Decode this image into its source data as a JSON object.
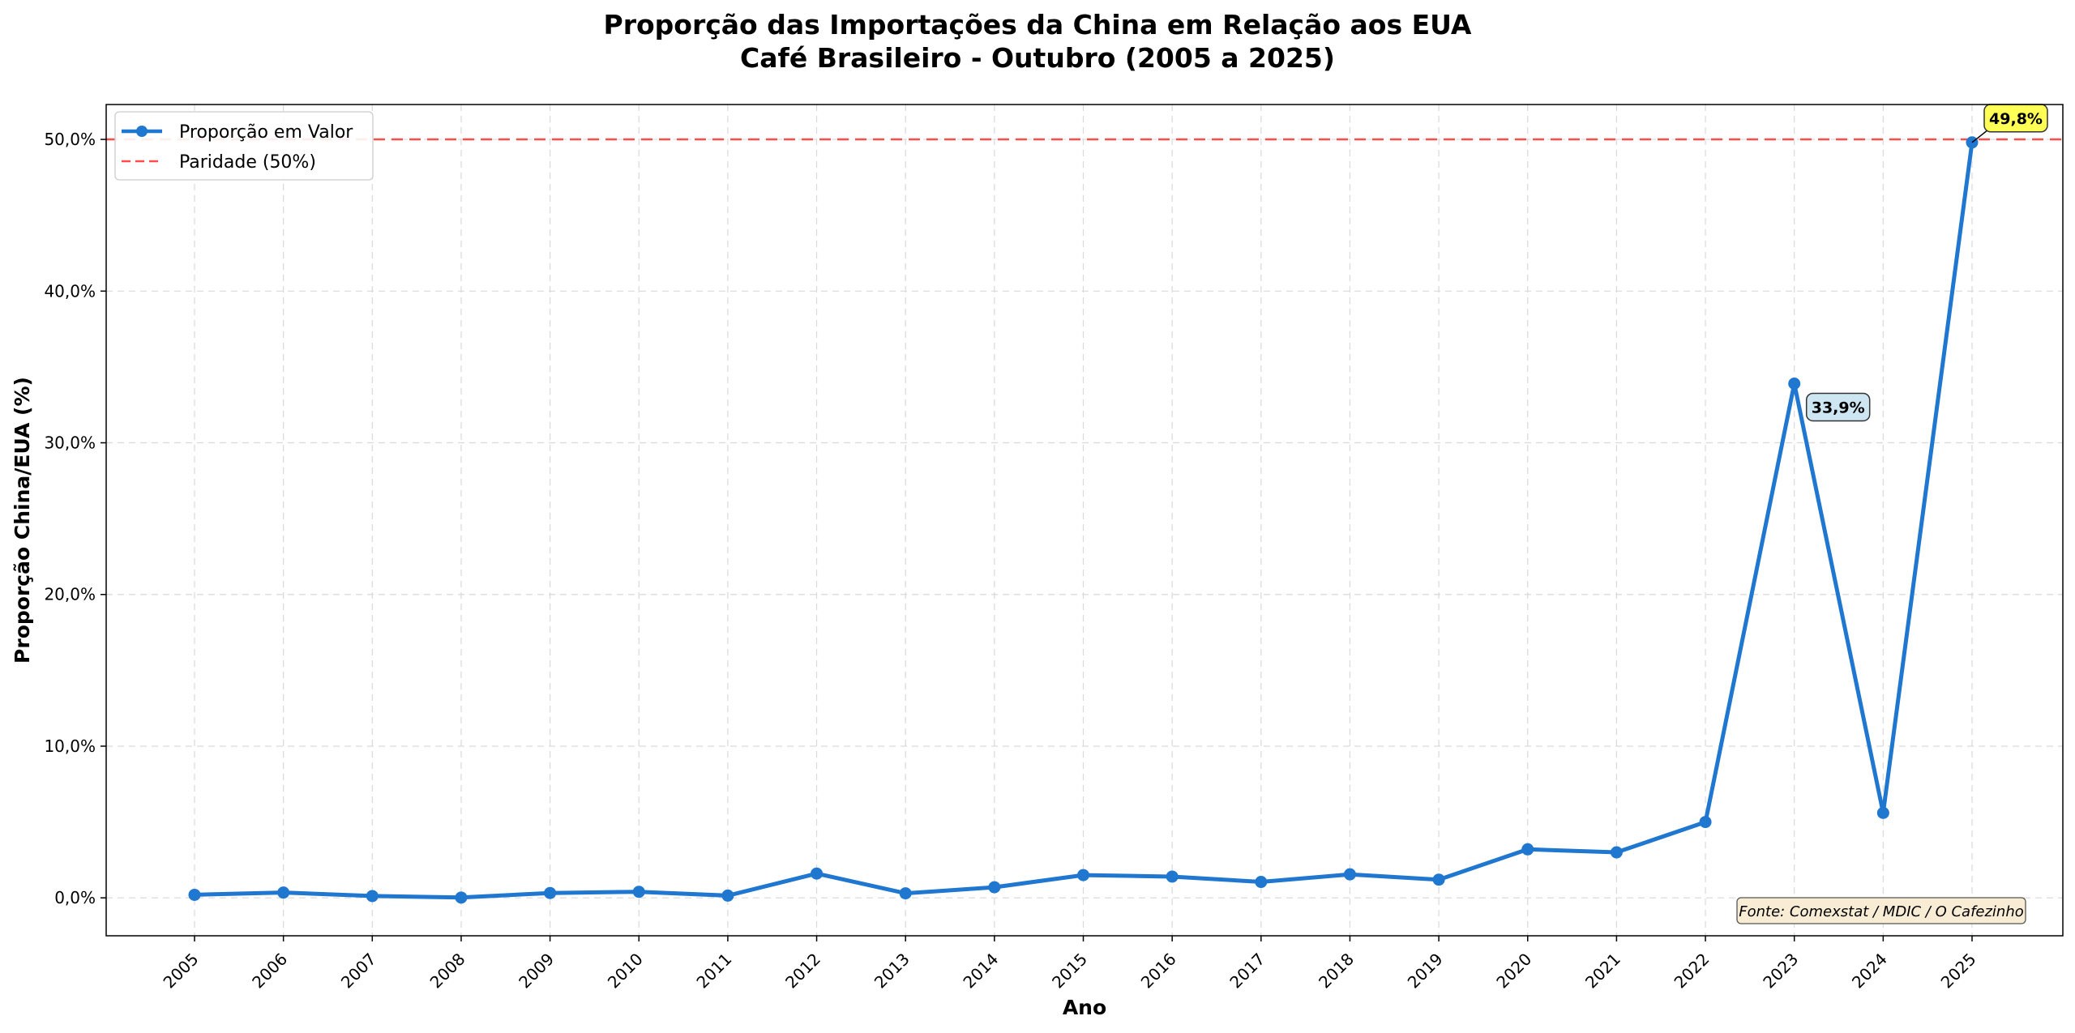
{
  "chart_data": {
    "type": "line",
    "title": "Proporção das Importações da China em Relação aos EUA",
    "subtitle": "Café Brasileiro - Outubro (2005 a 2025)",
    "xlabel": "Ano",
    "ylabel": "Proporção China/EUA (%)",
    "categories": [
      "2005",
      "2006",
      "2007",
      "2008",
      "2009",
      "2010",
      "2011",
      "2012",
      "2013",
      "2014",
      "2015",
      "2016",
      "2017",
      "2018",
      "2019",
      "2020",
      "2021",
      "2022",
      "2023",
      "2024",
      "2025"
    ],
    "series": [
      {
        "name": "Proporção em Valor",
        "color": "#1f77d0",
        "values": [
          0.2,
          0.35,
          0.12,
          0.02,
          0.32,
          0.4,
          0.15,
          1.6,
          0.3,
          0.7,
          1.5,
          1.4,
          1.05,
          1.55,
          1.2,
          3.2,
          3.0,
          5.0,
          33.9,
          5.6,
          49.8
        ]
      }
    ],
    "reference_line": {
      "name": "Paridade (50%)",
      "value": 50,
      "color": "#ff4d4d"
    },
    "ylim": [
      -2.5,
      52.3
    ],
    "yticks": [
      0,
      10,
      20,
      30,
      40,
      50
    ],
    "ytick_labels": [
      "0,0%",
      "10,0%",
      "20,0%",
      "30,0%",
      "40,0%",
      "50,0%"
    ],
    "grid": true,
    "legend_position": "top-left",
    "annotations": [
      {
        "category": "2023",
        "text": "33,9%",
        "bg": "#cde6f2"
      },
      {
        "category": "2025",
        "text": "49,8%",
        "bg": "#ffff55"
      }
    ],
    "source_note": "Fonte: Comexstat / MDIC / O Cafezinho"
  }
}
